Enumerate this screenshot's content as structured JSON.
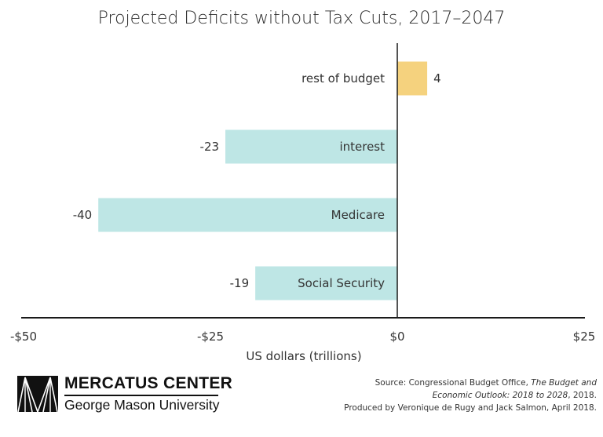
{
  "chart_data": {
    "type": "bar",
    "orientation": "horizontal",
    "title": "Projected Deficits without Tax Cuts, 2017–2047",
    "xlabel": "US dollars (trillions)",
    "ylabel": "",
    "xlim": [
      -50,
      25
    ],
    "xticks": [
      -50,
      -25,
      0,
      25
    ],
    "xtick_labels": [
      "-$50",
      "-$25",
      "$0",
      "$25"
    ],
    "grid": false,
    "legend": "none",
    "categories": [
      "rest of budget",
      "interest",
      "Medicare",
      "Social Security"
    ],
    "values": [
      4,
      -23,
      -40,
      -19
    ],
    "value_labels": [
      "4",
      "-23",
      "-40",
      "-19"
    ],
    "colors": {
      "positive": "#F5D27E",
      "negative": "#BEE6E5",
      "axis": "#1a1a1a"
    }
  },
  "branding": {
    "name": "MERCATUS CENTER",
    "subname": "George Mason University"
  },
  "source": {
    "line1_prefix": "Source: Congressional Budget Office, ",
    "line1_italic": "The Budget and",
    "line2_italic": "Economic Outlook: 2018 to 2028",
    "line2_suffix": ", 2018.",
    "line3": "Produced by Veronique de Rugy and Jack Salmon, April 2018."
  }
}
